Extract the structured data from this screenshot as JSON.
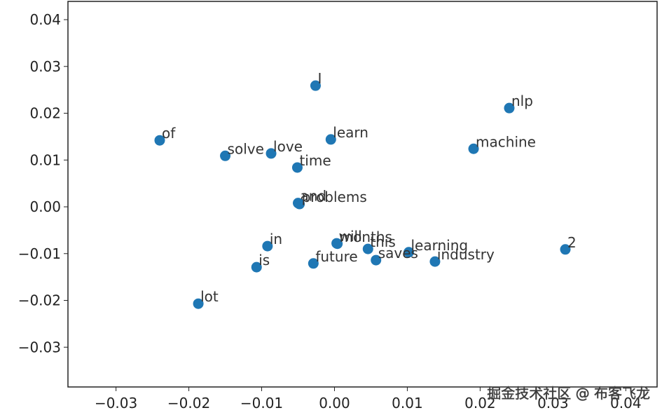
{
  "chart_data": {
    "type": "scatter",
    "point_labels": [
      "I",
      "nlp",
      "of",
      "learn",
      "machine",
      "solve",
      "love",
      "time",
      "and",
      "problems",
      "in",
      "is",
      "will",
      "months",
      "this",
      "learning",
      "saves",
      "future",
      "industry",
      "2",
      "lot"
    ],
    "x": [
      -0.0026,
      0.024,
      -0.024,
      -0.0005,
      0.0191,
      -0.015,
      -0.0087,
      -0.0051,
      -0.005,
      -0.0048,
      -0.0092,
      -0.0107,
      0.0003,
      0.0004,
      0.0046,
      0.0102,
      0.0057,
      -0.0029,
      0.0138,
      0.0317,
      -0.0187
    ],
    "values": [
      0.0259,
      0.0211,
      0.0142,
      0.0144,
      0.0124,
      0.0109,
      0.0114,
      0.0084,
      0.0008,
      0.0006,
      -0.0084,
      -0.0129,
      -0.0078,
      -0.0079,
      -0.009,
      -0.0097,
      -0.0114,
      -0.0121,
      -0.0117,
      -0.0091,
      -0.0207
    ],
    "color": "#1f77b4",
    "xlim": [
      -0.0366,
      0.0443
    ],
    "ylim": [
      -0.0385,
      0.0439
    ],
    "xticks": [
      {
        "value": -0.03,
        "label": "−0.03"
      },
      {
        "value": -0.02,
        "label": "−0.02"
      },
      {
        "value": -0.01,
        "label": "−0.01"
      },
      {
        "value": 0,
        "label": "0.00"
      },
      {
        "value": 0.01,
        "label": "0.01"
      },
      {
        "value": 0.02,
        "label": "0.02"
      },
      {
        "value": 0.03,
        "label": "0.03"
      },
      {
        "value": 0.04,
        "label": "0.04"
      }
    ],
    "yticks": [
      {
        "value": -0.03,
        "label": "−0.03"
      },
      {
        "value": -0.02,
        "label": "−0.02"
      },
      {
        "value": -0.01,
        "label": "−0.01"
      },
      {
        "value": 0,
        "label": "0.00"
      },
      {
        "value": 0.01,
        "label": "0.01"
      },
      {
        "value": 0.02,
        "label": "0.02"
      },
      {
        "value": 0.03,
        "label": "0.03"
      },
      {
        "value": 0.04,
        "label": "0.04"
      }
    ],
    "watermark": "掘金技术社区 @ 布客飞龙"
  }
}
